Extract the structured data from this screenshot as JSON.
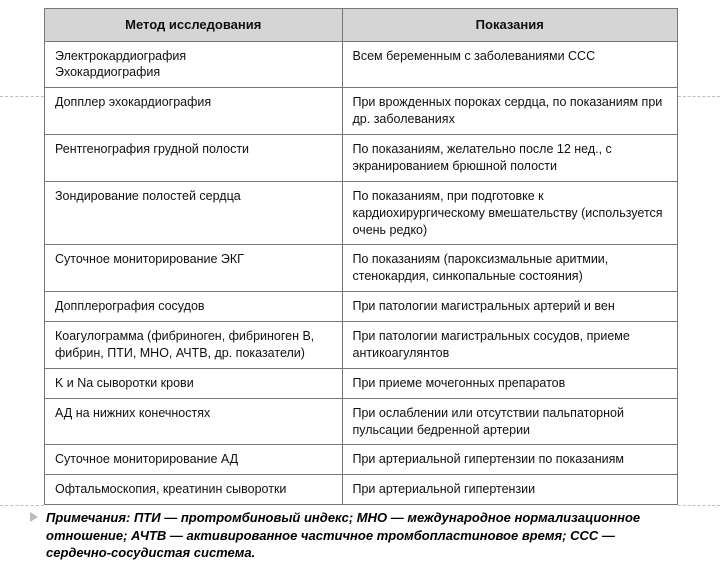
{
  "table": {
    "headers": [
      "Метод исследования",
      "Показания"
    ],
    "rows": [
      [
        "Электрокардиография\nЭхокардиография",
        "Всем беременным с заболеваниями ССС"
      ],
      [
        "Допплер эхокардиография",
        "При врожденных пороках сердца, по показаниям при др. заболеваниях"
      ],
      [
        "Рентгенография грудной полости",
        "По показаниям, желательно после 12 нед., с экранированием брюшной полости"
      ],
      [
        "Зондирование полостей сердца",
        "По показаниям, при подготовке к кардиохирургическому вмешательству (используется очень редко)"
      ],
      [
        "Суточное мониторирование ЭКГ",
        "По показаниям (пароксизмальные аритмии, стенокардия, синкопальные состояния)"
      ],
      [
        "Допплерография сосудов",
        "При патологии магистральных артерий и вен"
      ],
      [
        "Коагулограмма (фибриноген, фибриноген В, фибрин, ПТИ, МНО, АЧТВ, др. показатели)",
        "При патологии магистральных сосудов, приеме антикоагулянтов"
      ],
      [
        "K и Na сыворотки крови",
        "При приеме мочегонных препаратов"
      ],
      [
        "АД на нижних конечностях",
        "При ослаблении или отсутствии пальпаторной пульсации бедренной артерии"
      ],
      [
        "Суточное мониторирование АД",
        "При артериальной гипертензии по показаниям"
      ],
      [
        "Офтальмоскопия, креатинин сыворотки",
        "При артериальной гипертензии"
      ]
    ]
  },
  "note": "Примечания: ПТИ — протромбиновый индекс; МНО — международное нормализационное отношение; АЧТВ — активированное частичное тромбопластиновое время; ССС — сердечно-сосудистая система."
}
